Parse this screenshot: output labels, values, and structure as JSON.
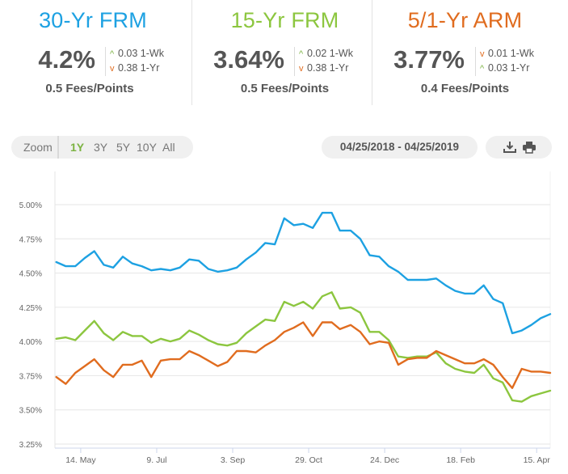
{
  "rates": [
    {
      "title": "30-Yr FRM",
      "color": "#1da1e2",
      "value": "4.2%",
      "change_1wk": "0.03 1-Wk",
      "change_1wk_dir": "up",
      "change_1yr": "0.38 1-Yr",
      "change_1yr_dir": "down",
      "fees": "0.5 Fees/Points"
    },
    {
      "title": "15-Yr FRM",
      "color": "#8cc63f",
      "value": "3.64%",
      "change_1wk": "0.02 1-Wk",
      "change_1wk_dir": "up",
      "change_1yr": "0.38 1-Yr",
      "change_1yr_dir": "down",
      "fees": "0.5 Fees/Points"
    },
    {
      "title": "5/1-Yr ARM",
      "color": "#e06c1f",
      "value": "3.77%",
      "change_1wk": "0.01 1-Wk",
      "change_1wk_dir": "down",
      "change_1yr": "0.03 1-Yr",
      "change_1yr_dir": "up",
      "fees": "0.4 Fees/Points"
    }
  ],
  "zoom": {
    "label": "Zoom",
    "options": [
      "1Y",
      "3Y",
      "5Y",
      "10Y",
      "All"
    ],
    "active": "1Y"
  },
  "date_range": "04/25/2018 - 04/25/2019",
  "tools": {
    "download_icon": "download-icon",
    "print_icon": "print-icon"
  },
  "chart_data": {
    "type": "line",
    "ylim": [
      3.25,
      5.0
    ],
    "yticks": [
      "5.00%",
      "4.75%",
      "4.50%",
      "4.25%",
      "4.00%",
      "3.75%",
      "3.50%",
      "3.25%"
    ],
    "ytick_values": [
      5.0,
      4.75,
      4.5,
      4.25,
      4.0,
      3.75,
      3.5,
      3.25
    ],
    "xlim": [
      "2018-04-25",
      "2019-04-25"
    ],
    "xticks": [
      {
        "label": "14. May",
        "date": "2018-05-14"
      },
      {
        "label": "9. Jul",
        "date": "2018-07-09"
      },
      {
        "label": "3. Sep",
        "date": "2018-09-03"
      },
      {
        "label": "29. Oct",
        "date": "2018-10-29"
      },
      {
        "label": "24. Dec",
        "date": "2018-12-24"
      },
      {
        "label": "18. Feb",
        "date": "2019-02-18"
      },
      {
        "label": "15. Apr",
        "date": "2019-04-15"
      }
    ],
    "grid": true,
    "dates": [
      "2018-04-26",
      "2018-05-03",
      "2018-05-10",
      "2018-05-17",
      "2018-05-24",
      "2018-05-31",
      "2018-06-07",
      "2018-06-14",
      "2018-06-21",
      "2018-06-28",
      "2018-07-05",
      "2018-07-12",
      "2018-07-19",
      "2018-07-26",
      "2018-08-02",
      "2018-08-09",
      "2018-08-16",
      "2018-08-23",
      "2018-08-30",
      "2018-09-06",
      "2018-09-13",
      "2018-09-20",
      "2018-09-27",
      "2018-10-04",
      "2018-10-11",
      "2018-10-18",
      "2018-10-25",
      "2018-11-01",
      "2018-11-08",
      "2018-11-15",
      "2018-11-21",
      "2018-11-29",
      "2018-12-06",
      "2018-12-13",
      "2018-12-20",
      "2018-12-27",
      "2019-01-03",
      "2019-01-10",
      "2019-01-17",
      "2019-01-24",
      "2019-01-31",
      "2019-02-07",
      "2019-02-14",
      "2019-02-21",
      "2019-02-28",
      "2019-03-07",
      "2019-03-14",
      "2019-03-21",
      "2019-03-28",
      "2019-04-04",
      "2019-04-11",
      "2019-04-18",
      "2019-04-25"
    ],
    "series": [
      {
        "key": "30yr",
        "color": "#1da1e2",
        "values": [
          4.58,
          4.55,
          4.55,
          4.61,
          4.66,
          4.56,
          4.54,
          4.62,
          4.57,
          4.55,
          4.52,
          4.53,
          4.52,
          4.54,
          4.6,
          4.59,
          4.53,
          4.51,
          4.52,
          4.54,
          4.6,
          4.65,
          4.72,
          4.71,
          4.9,
          4.85,
          4.86,
          4.83,
          4.94,
          4.94,
          4.81,
          4.81,
          4.75,
          4.63,
          4.62,
          4.55,
          4.51,
          4.45,
          4.45,
          4.45,
          4.46,
          4.41,
          4.37,
          4.35,
          4.35,
          4.41,
          4.31,
          4.28,
          4.06,
          4.08,
          4.12,
          4.17,
          4.2
        ]
      },
      {
        "key": "15yr",
        "color": "#8cc63f",
        "values": [
          4.02,
          4.03,
          4.01,
          4.08,
          4.15,
          4.06,
          4.01,
          4.07,
          4.04,
          4.04,
          3.99,
          4.02,
          4.0,
          4.02,
          4.08,
          4.05,
          4.01,
          3.98,
          3.97,
          3.99,
          4.06,
          4.11,
          4.16,
          4.15,
          4.29,
          4.26,
          4.29,
          4.24,
          4.33,
          4.36,
          4.24,
          4.25,
          4.21,
          4.07,
          4.07,
          4.01,
          3.89,
          3.88,
          3.89,
          3.89,
          3.92,
          3.84,
          3.8,
          3.78,
          3.77,
          3.83,
          3.73,
          3.7,
          3.57,
          3.56,
          3.6,
          3.62,
          3.64
        ]
      },
      {
        "key": "arm",
        "color": "#e06c1f",
        "values": [
          3.74,
          3.69,
          3.77,
          3.82,
          3.87,
          3.79,
          3.74,
          3.83,
          3.83,
          3.86,
          3.74,
          3.86,
          3.87,
          3.87,
          3.93,
          3.9,
          3.86,
          3.82,
          3.85,
          3.93,
          3.93,
          3.92,
          3.97,
          4.01,
          4.07,
          4.1,
          4.14,
          4.04,
          4.14,
          4.14,
          4.09,
          4.12,
          4.07,
          3.98,
          4.0,
          3.99,
          3.83,
          3.87,
          3.88,
          3.88,
          3.93,
          3.9,
          3.87,
          3.84,
          3.84,
          3.87,
          3.83,
          3.74,
          3.66,
          3.8,
          3.78,
          3.78,
          3.77
        ]
      }
    ]
  }
}
